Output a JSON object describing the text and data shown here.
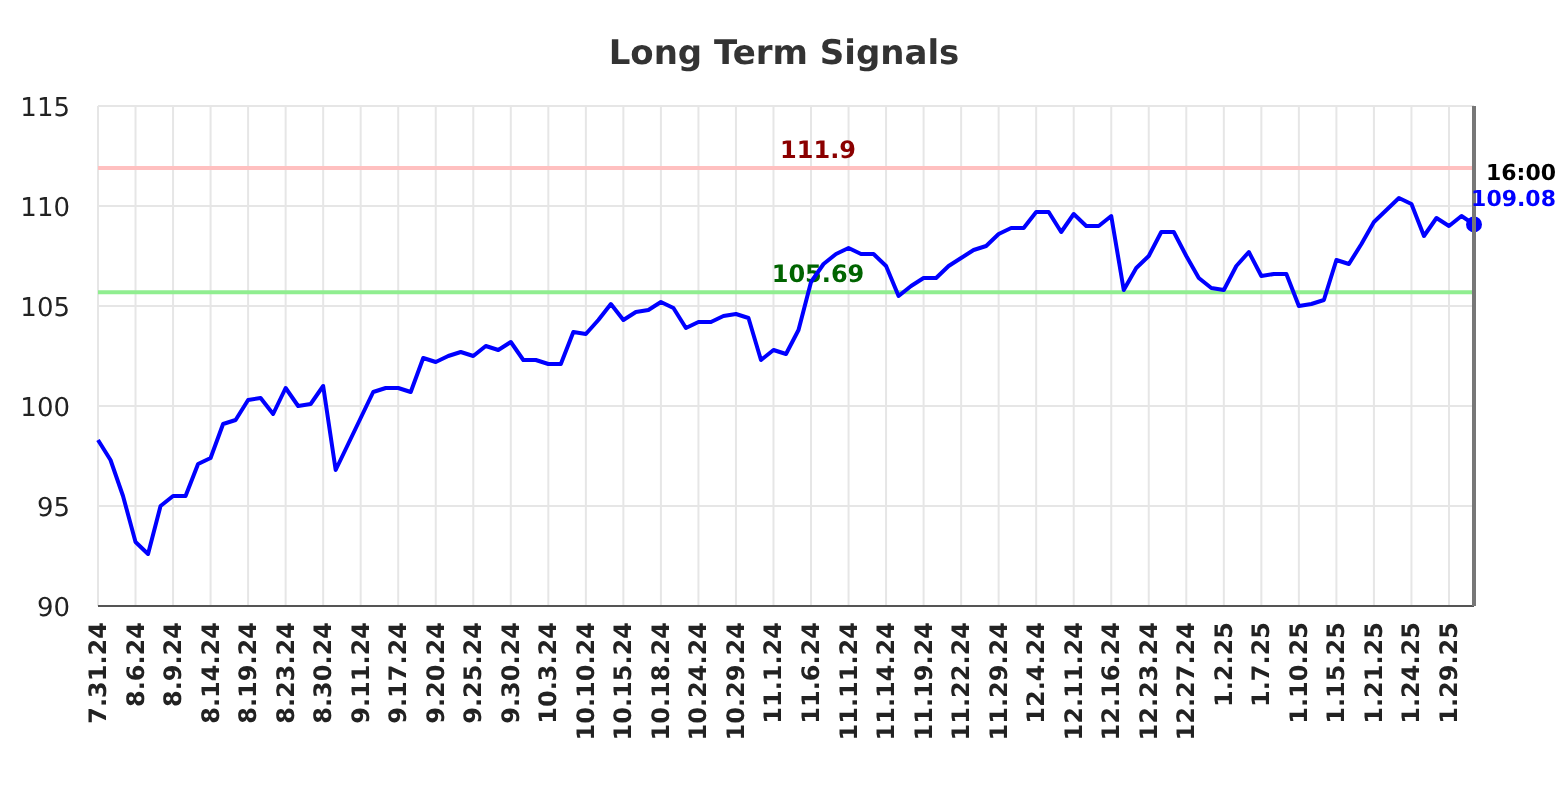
{
  "chart_data": {
    "type": "line",
    "title": "Long Term Signals",
    "categories": [
      "7.31.24",
      null,
      null,
      "8.6.24",
      null,
      null,
      "8.9.24",
      null,
      null,
      "8.14.24",
      null,
      null,
      "8.19.24",
      null,
      null,
      "8.23.24",
      null,
      null,
      "8.30.24",
      null,
      null,
      "9.11.24",
      null,
      null,
      "9.17.24",
      null,
      null,
      "9.20.24",
      null,
      null,
      "9.25.24",
      null,
      null,
      "9.30.24",
      null,
      null,
      "10.3.24",
      null,
      null,
      "10.10.24",
      null,
      null,
      "10.15.24",
      null,
      null,
      "10.18.24",
      null,
      null,
      "10.24.24",
      null,
      null,
      "10.29.24",
      null,
      null,
      "11.1.24",
      null,
      null,
      "11.6.24",
      null,
      null,
      "11.11.24",
      null,
      null,
      "11.14.24",
      null,
      null,
      "11.19.24",
      null,
      null,
      "11.22.24",
      null,
      null,
      "11.29.24",
      null,
      null,
      "12.4.24",
      null,
      null,
      "12.11.24",
      null,
      null,
      "12.16.24",
      null,
      null,
      "12.23.24",
      null,
      null,
      "12.27.24",
      null,
      null,
      "1.2.25",
      null,
      null,
      "1.7.25",
      null,
      null,
      "1.10.25",
      null,
      null,
      "1.15.25",
      null,
      null,
      "1.21.25",
      null,
      null,
      "1.24.25",
      null,
      null,
      "1.29.25",
      null,
      null
    ],
    "series": [
      {
        "color": "#0000ff",
        "values": [
          98.3,
          97.3,
          95.5,
          93.2,
          92.6,
          95.0,
          95.5,
          95.5,
          97.1,
          97.4,
          99.1,
          99.3,
          100.3,
          100.4,
          99.6,
          100.9,
          100.0,
          100.1,
          101.0,
          96.8,
          98.1,
          99.4,
          100.7,
          100.9,
          100.9,
          100.7,
          102.4,
          102.2,
          102.5,
          102.7,
          102.5,
          103.0,
          102.8,
          103.2,
          102.3,
          102.3,
          102.1,
          102.1,
          103.7,
          103.6,
          104.3,
          105.1,
          104.3,
          104.7,
          104.8,
          105.2,
          104.9,
          103.9,
          104.2,
          104.2,
          104.5,
          104.6,
          104.4,
          102.3,
          102.8,
          102.6,
          103.8,
          106.2,
          107.1,
          107.6,
          107.9,
          107.6,
          107.6,
          107.0,
          105.5,
          106.0,
          106.4,
          106.4,
          107.0,
          107.4,
          107.8,
          108.0,
          108.6,
          108.9,
          108.9,
          109.7,
          109.7,
          108.7,
          109.6,
          109.0,
          109.0,
          109.5,
          105.8,
          106.9,
          107.5,
          108.7,
          108.7,
          107.5,
          106.4,
          105.9,
          105.8,
          107.0,
          107.7,
          106.5,
          106.6,
          106.6,
          105.0,
          105.1,
          105.3,
          107.3,
          107.1,
          108.1,
          109.2,
          109.8,
          110.4,
          110.1,
          108.5,
          109.4,
          109.0,
          109.5,
          109.08
        ]
      }
    ],
    "ylim": [
      90,
      115
    ],
    "yticks": [
      90,
      95,
      100,
      105,
      110,
      115
    ],
    "grid": true,
    "ref_lines": [
      {
        "axis": "y",
        "value": 111.9,
        "label": "111.9",
        "color": "#ffc0c0"
      },
      {
        "axis": "y",
        "value": 105.69,
        "label": "105.69",
        "color": "#90ee90"
      }
    ],
    "annotations": [
      "16:00",
      "109.08"
    ]
  }
}
